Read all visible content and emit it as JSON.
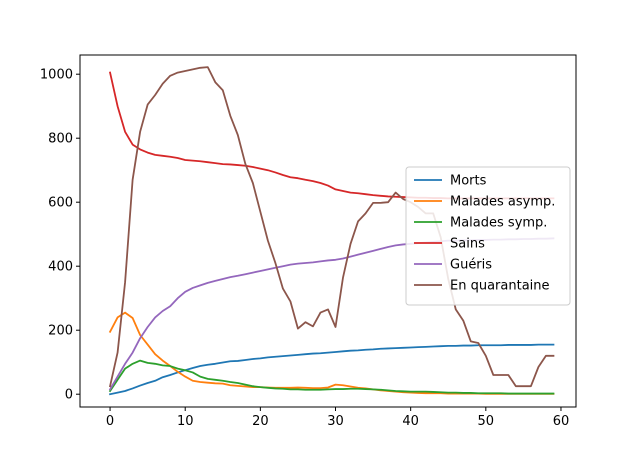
{
  "chart_data": {
    "type": "line",
    "title": "",
    "xlabel": "",
    "ylabel": "",
    "xlim": [
      -4,
      62
    ],
    "ylim": [
      -40,
      1060
    ],
    "xticks": [
      0,
      10,
      20,
      30,
      40,
      50,
      60
    ],
    "yticks": [
      0,
      200,
      400,
      600,
      800,
      1000
    ],
    "grid": false,
    "legend_position": "center-right",
    "x": [
      0,
      1,
      2,
      3,
      4,
      5,
      6,
      7,
      8,
      9,
      10,
      11,
      12,
      13,
      14,
      15,
      16,
      17,
      18,
      19,
      20,
      21,
      22,
      23,
      24,
      25,
      26,
      27,
      28,
      29,
      30,
      31,
      32,
      33,
      34,
      35,
      36,
      37,
      38,
      39,
      40,
      41,
      42,
      43,
      44,
      45,
      46,
      47,
      48,
      49,
      50,
      51,
      52,
      53,
      54,
      55,
      56,
      57,
      58,
      59
    ],
    "series": [
      {
        "name": "Morts",
        "color": "#1f77b4",
        "values": [
          0,
          5,
          10,
          18,
          27,
          35,
          42,
          53,
          60,
          68,
          75,
          82,
          88,
          92,
          95,
          99,
          103,
          104,
          107,
          110,
          112,
          115,
          117,
          119,
          121,
          123,
          125,
          127,
          128,
          130,
          132,
          134,
          136,
          137,
          139,
          140,
          142,
          143,
          144,
          145,
          146,
          147,
          148,
          149,
          150,
          151,
          151,
          152,
          152,
          153,
          153,
          153,
          153,
          154,
          154,
          154,
          154,
          155,
          155,
          155
        ]
      },
      {
        "name": "Malades asymp.",
        "color": "#ff7f0e",
        "values": [
          195,
          240,
          255,
          238,
          185,
          155,
          125,
          105,
          88,
          70,
          55,
          42,
          38,
          36,
          34,
          33,
          28,
          26,
          24,
          22,
          22,
          21,
          20,
          20,
          20,
          21,
          20,
          19,
          19,
          21,
          30,
          28,
          24,
          20,
          18,
          15,
          12,
          10,
          8,
          6,
          5,
          4,
          3,
          3,
          3,
          2,
          2,
          2,
          2,
          2,
          1,
          1,
          1,
          1,
          1,
          1,
          1,
          1,
          1,
          1
        ]
      },
      {
        "name": "Malades symp.",
        "color": "#2ca02c",
        "values": [
          10,
          45,
          80,
          95,
          105,
          98,
          95,
          90,
          88,
          80,
          75,
          68,
          55,
          48,
          45,
          42,
          38,
          35,
          30,
          25,
          22,
          20,
          18,
          17,
          15,
          15,
          14,
          14,
          14,
          15,
          16,
          16,
          17,
          17,
          16,
          15,
          14,
          12,
          10,
          9,
          8,
          8,
          8,
          7,
          6,
          5,
          5,
          4,
          4,
          3,
          3,
          3,
          3,
          2,
          2,
          2,
          2,
          2,
          2,
          2
        ]
      },
      {
        "name": "Sains",
        "color": "#d62728",
        "values": [
          1005,
          900,
          820,
          780,
          765,
          755,
          748,
          745,
          742,
          738,
          732,
          730,
          728,
          725,
          722,
          719,
          718,
          716,
          714,
          710,
          705,
          700,
          693,
          685,
          678,
          675,
          670,
          666,
          660,
          652,
          640,
          635,
          630,
          628,
          625,
          622,
          620,
          618,
          617,
          616,
          615,
          614,
          614,
          613,
          613,
          612,
          612,
          612,
          612,
          612,
          612,
          612,
          612,
          612,
          612,
          612,
          612,
          612,
          612,
          612
        ]
      },
      {
        "name": "Guéris",
        "color": "#9467bd",
        "values": [
          15,
          55,
          95,
          130,
          175,
          210,
          240,
          260,
          275,
          300,
          320,
          332,
          340,
          348,
          354,
          360,
          366,
          370,
          375,
          380,
          385,
          390,
          395,
          400,
          405,
          408,
          410,
          412,
          415,
          418,
          420,
          424,
          430,
          436,
          442,
          448,
          454,
          460,
          465,
          468,
          470,
          472,
          474,
          476,
          478,
          480,
          480,
          481,
          481,
          482,
          482,
          483,
          483,
          484,
          484,
          485,
          485,
          486,
          486,
          487
        ]
      },
      {
        "name": "En quarantaine",
        "color": "#8c564b",
        "values": [
          25,
          130,
          350,
          670,
          820,
          905,
          935,
          970,
          995,
          1005,
          1010,
          1015,
          1020,
          1022,
          975,
          950,
          870,
          810,
          720,
          660,
          570,
          480,
          410,
          330,
          290,
          205,
          225,
          212,
          255,
          265,
          210,
          365,
          470,
          540,
          565,
          598,
          598,
          600,
          630,
          610,
          600,
          585,
          565,
          565,
          490,
          360,
          265,
          230,
          165,
          160,
          120,
          60,
          60,
          60,
          25,
          25,
          25,
          85,
          120,
          120
        ]
      }
    ]
  }
}
